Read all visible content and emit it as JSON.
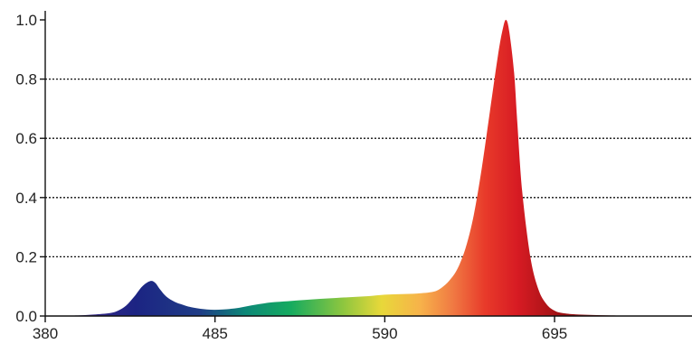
{
  "chart_data": {
    "type": "area",
    "title": "",
    "xlabel": "",
    "ylabel": "",
    "xlim": [
      380,
      780
    ],
    "ylim": [
      0,
      1.0
    ],
    "x_ticks": [
      380,
      485,
      590,
      695
    ],
    "x_tick_labels": [
      "380",
      "485",
      "590",
      "695"
    ],
    "y_ticks": [
      0.0,
      0.2,
      0.4,
      0.6,
      0.8,
      1.0
    ],
    "y_tick_labels": [
      "0.0",
      "0.2",
      "0.4",
      "0.6",
      "0.8",
      "1.0"
    ],
    "grid": "horizontal dotted lines at 0.2, 0.4, 0.6, 0.8",
    "legend": "none",
    "fill": "visible-spectrum gradient under curve",
    "series": [
      {
        "x": [
          380,
          400,
          410,
          420,
          425,
          430,
          435,
          440,
          445,
          448,
          451,
          455,
          460,
          465,
          470,
          480,
          490,
          500,
          510,
          520,
          530,
          540,
          550,
          560,
          570,
          580,
          590,
          600,
          610,
          620,
          625,
          630,
          635,
          640,
          645,
          650,
          655,
          660,
          663,
          665,
          667,
          670,
          672,
          675,
          680,
          685,
          690,
          695,
          700,
          710,
          730,
          760,
          780
        ],
        "y": [
          0,
          0.002,
          0.005,
          0.01,
          0.018,
          0.035,
          0.065,
          0.1,
          0.118,
          0.112,
          0.09,
          0.065,
          0.048,
          0.038,
          0.03,
          0.022,
          0.022,
          0.028,
          0.038,
          0.046,
          0.05,
          0.054,
          0.058,
          0.061,
          0.064,
          0.067,
          0.072,
          0.074,
          0.076,
          0.082,
          0.095,
          0.12,
          0.16,
          0.23,
          0.34,
          0.5,
          0.69,
          0.88,
          0.97,
          1.0,
          0.96,
          0.82,
          0.65,
          0.42,
          0.2,
          0.09,
          0.04,
          0.018,
          0.01,
          0.005,
          0.002,
          0,
          0
        ]
      }
    ]
  }
}
